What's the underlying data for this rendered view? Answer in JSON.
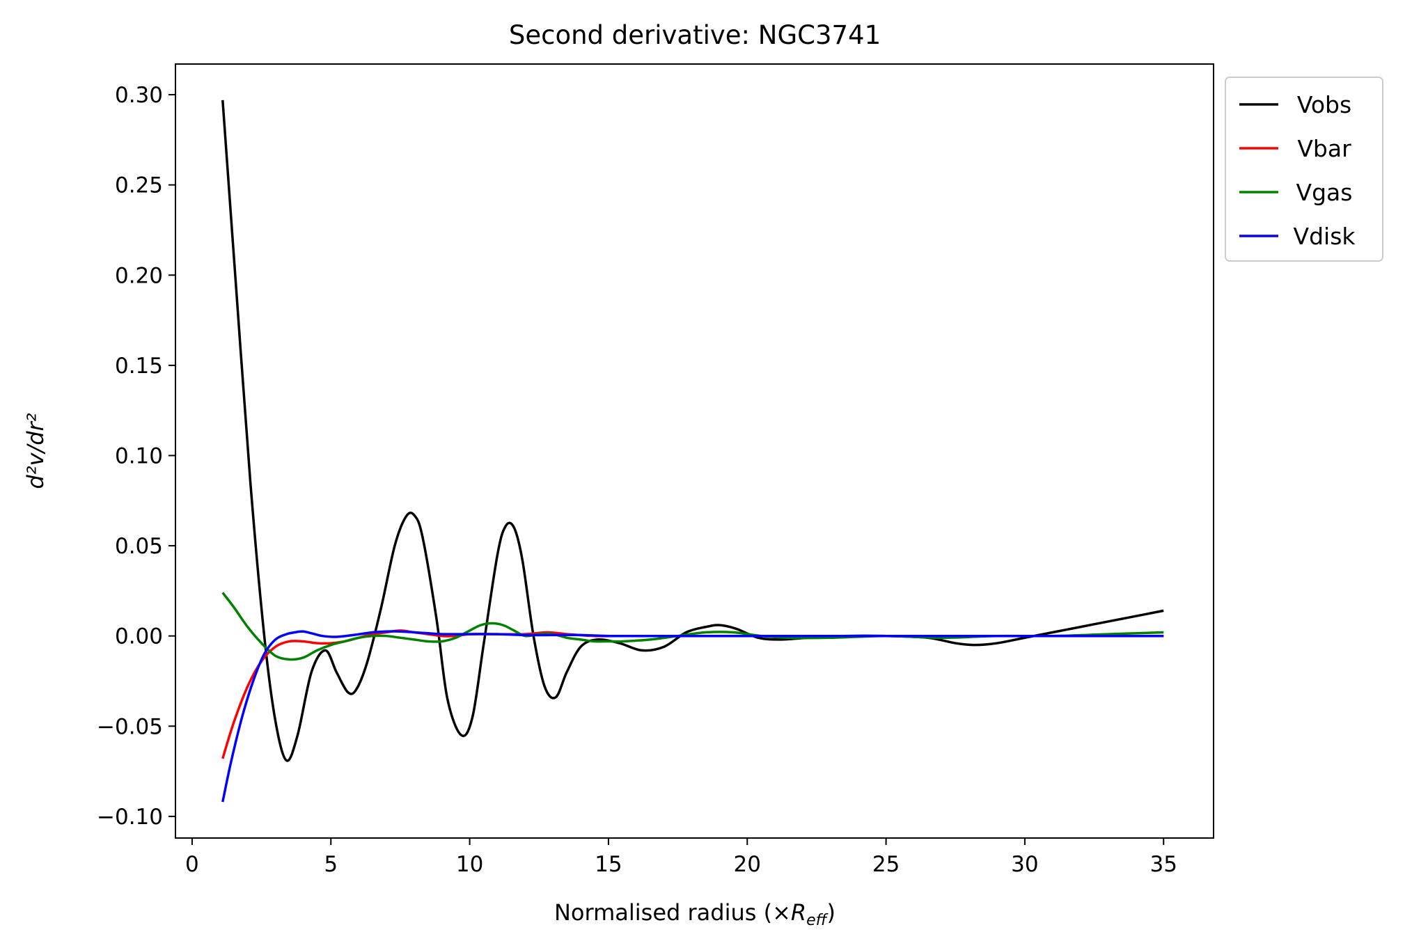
{
  "chart_data": {
    "type": "line",
    "title": "Second derivative: NGC3741",
    "xlabel_prefix": "Normalised radius (×",
    "xlabel_symbol": "R",
    "xlabel_subscript": "eff",
    "xlabel_suffix": ")",
    "ylabel": "d²v/dr²",
    "xlim": [
      -0.6,
      36.8
    ],
    "ylim": [
      -0.112,
      0.317
    ],
    "xticks": [
      0,
      5,
      10,
      15,
      20,
      25,
      30,
      35
    ],
    "yticks": [
      -0.1,
      -0.05,
      0.0,
      0.05,
      0.1,
      0.15,
      0.2,
      0.25,
      0.3
    ],
    "ytick_labels": [
      "−0.10",
      "−0.05",
      "0.00",
      "0.05",
      "0.10",
      "0.15",
      "0.20",
      "0.25",
      "0.30"
    ],
    "grid": false,
    "legend_position": "outside-top-right",
    "series": [
      {
        "name": "Vobs",
        "color": "#000000",
        "x": [
          1.1,
          1.6,
          2.1,
          2.6,
          3.0,
          3.4,
          3.8,
          4.3,
          4.8,
          5.2,
          5.6,
          5.9,
          6.3,
          6.8,
          7.3,
          7.7,
          8.0,
          8.3,
          8.8,
          9.2,
          9.7,
          10.1,
          10.5,
          11.0,
          11.3,
          11.6,
          11.9,
          12.3,
          12.7,
          13.1,
          13.5,
          14.0,
          14.6,
          15.4,
          16.2,
          17.0,
          17.8,
          18.5,
          19.0,
          19.6,
          20.4,
          21.2,
          22.2,
          23.5,
          25.0,
          26.5,
          27.5,
          28.2,
          29.0,
          30.0,
          31.0,
          32.0,
          33.0,
          34.0,
          35.0
        ],
        "y": [
          0.297,
          0.19,
          0.085,
          0.0,
          -0.047,
          -0.069,
          -0.055,
          -0.02,
          -0.008,
          -0.02,
          -0.031,
          -0.03,
          -0.015,
          0.015,
          0.05,
          0.066,
          0.067,
          0.055,
          0.01,
          -0.035,
          -0.055,
          -0.045,
          -0.005,
          0.045,
          0.061,
          0.06,
          0.042,
          0.0,
          -0.028,
          -0.034,
          -0.02,
          -0.006,
          -0.002,
          -0.004,
          -0.008,
          -0.006,
          0.002,
          0.005,
          0.006,
          0.004,
          -0.001,
          -0.002,
          -0.001,
          0.0,
          0.0,
          -0.001,
          -0.004,
          -0.005,
          -0.004,
          -0.001,
          0.002,
          0.005,
          0.008,
          0.011,
          0.014
        ]
      },
      {
        "name": "Vbar",
        "color": "#ff0000",
        "x": [
          1.1,
          1.5,
          2.0,
          2.5,
          3.0,
          3.5,
          4.0,
          4.5,
          5.0,
          5.5,
          6.0,
          6.5,
          7.0,
          7.5,
          8.0,
          8.5,
          9.0,
          9.5,
          10.0,
          11.0,
          12.0,
          12.8,
          13.5,
          14.5,
          15.5,
          17.0,
          18.5,
          20.0,
          22.0,
          25.0,
          28.0,
          31.0,
          35.0
        ],
        "y": [
          -0.068,
          -0.048,
          -0.028,
          -0.014,
          -0.006,
          -0.003,
          -0.003,
          -0.004,
          -0.004,
          -0.003,
          -0.001,
          0.001,
          0.002,
          0.003,
          0.002,
          0.001,
          0.0,
          0.0,
          0.001,
          0.001,
          0.001,
          0.002,
          0.001,
          0.0,
          0.0,
          0.0,
          0.0,
          0.0,
          0.0,
          0.0,
          0.0,
          0.0,
          0.0
        ]
      },
      {
        "name": "Vgas",
        "color": "#008000",
        "x": [
          1.1,
          1.5,
          2.0,
          2.5,
          3.0,
          3.5,
          4.0,
          4.5,
          5.0,
          5.5,
          6.0,
          6.5,
          7.0,
          7.5,
          8.0,
          8.5,
          9.0,
          9.5,
          10.0,
          10.4,
          10.8,
          11.2,
          11.6,
          12.0,
          12.5,
          13.0,
          13.5,
          14.0,
          14.5,
          15.0,
          15.5,
          16.5,
          17.5,
          18.5,
          19.5,
          20.5,
          21.5,
          23.0,
          25.0,
          27.0,
          29.0,
          31.0,
          33.0,
          35.0
        ],
        "y": [
          0.024,
          0.016,
          0.005,
          -0.004,
          -0.011,
          -0.013,
          -0.012,
          -0.008,
          -0.005,
          -0.003,
          -0.001,
          0.0,
          0.0,
          -0.001,
          -0.002,
          -0.003,
          -0.003,
          -0.001,
          0.003,
          0.006,
          0.007,
          0.006,
          0.003,
          0.0,
          0.001,
          0.001,
          -0.001,
          -0.002,
          -0.003,
          -0.003,
          -0.003,
          -0.002,
          0.0,
          0.002,
          0.002,
          0.0,
          -0.001,
          -0.001,
          0.0,
          -0.001,
          0.0,
          0.0,
          0.001,
          0.002
        ]
      },
      {
        "name": "Vdisk",
        "color": "#0000ff",
        "x": [
          1.1,
          1.4,
          1.8,
          2.2,
          2.6,
          3.0,
          3.4,
          3.7,
          4.0,
          4.3,
          4.7,
          5.2,
          5.8,
          6.5,
          7.0,
          7.5,
          8.0,
          8.5,
          9.0,
          10.0,
          11.0,
          12.0,
          13.0,
          14.0,
          15.0,
          17.0,
          19.0,
          21.0,
          25.0,
          30.0,
          35.0
        ],
        "y": [
          -0.092,
          -0.07,
          -0.045,
          -0.025,
          -0.01,
          -0.002,
          0.001,
          0.002,
          0.0025,
          0.0015,
          0.0,
          -0.0005,
          0.0005,
          0.002,
          0.0025,
          0.0025,
          0.002,
          0.0015,
          0.001,
          0.001,
          0.001,
          0.0005,
          0.0005,
          0.0005,
          0.0,
          0.0,
          0.0,
          0.0,
          0.0,
          0.0,
          0.0
        ]
      }
    ]
  }
}
